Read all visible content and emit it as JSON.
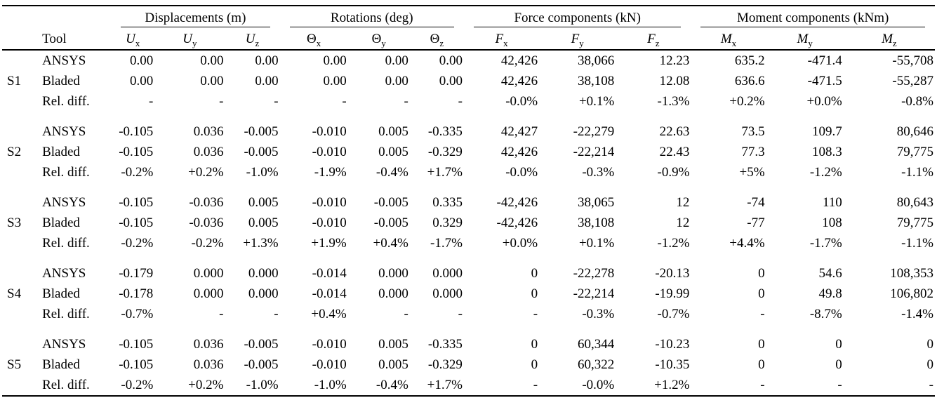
{
  "table": {
    "tool_header": "Tool",
    "groups": [
      {
        "label": "Displacements (m)"
      },
      {
        "label": "Rotations (deg)"
      },
      {
        "label": "Force components (kN)"
      },
      {
        "label": "Moment components (kNm)"
      }
    ],
    "columns": [
      {
        "base": "U",
        "sub": "x",
        "italic": true
      },
      {
        "base": "U",
        "sub": "y",
        "italic": true
      },
      {
        "base": "U",
        "sub": "z",
        "italic": true
      },
      {
        "base": "Θ",
        "sub": "x",
        "italic": false
      },
      {
        "base": "Θ",
        "sub": "y",
        "italic": false
      },
      {
        "base": "Θ",
        "sub": "z",
        "italic": false
      },
      {
        "base": "F",
        "sub": "x",
        "italic": true
      },
      {
        "base": "F",
        "sub": "y",
        "italic": true
      },
      {
        "base": "F",
        "sub": "z",
        "italic": true
      },
      {
        "base": "M",
        "sub": "x",
        "italic": true
      },
      {
        "base": "M",
        "sub": "y",
        "italic": true
      },
      {
        "base": "M",
        "sub": "z",
        "italic": true
      }
    ],
    "row_labels": [
      "ANSYS",
      "Bladed",
      "Rel. diff."
    ],
    "sections": [
      {
        "id": "S1",
        "rows": [
          {
            "tool": "ANSYS",
            "values": [
              "0.00",
              "0.00",
              "0.00",
              "0.00",
              "0.00",
              "0.00",
              "42,426",
              "38,066",
              "12.23",
              "635.2",
              "-471.4",
              "-55,708"
            ]
          },
          {
            "tool": "Bladed",
            "values": [
              "0.00",
              "0.00",
              "0.00",
              "0.00",
              "0.00",
              "0.00",
              "42,426",
              "38,108",
              "12.08",
              "636.6",
              "-471.5",
              "-55,287"
            ]
          },
          {
            "tool": "Rel. diff.",
            "values": [
              "-",
              "-",
              "-",
              "-",
              "-",
              "-",
              "-0.0%",
              "+0.1%",
              "-1.3%",
              "+0.2%",
              "+0.0%",
              "-0.8%"
            ]
          }
        ]
      },
      {
        "id": "S2",
        "rows": [
          {
            "tool": "ANSYS",
            "values": [
              "-0.105",
              "0.036",
              "-0.005",
              "-0.010",
              "0.005",
              "-0.335",
              "42,427",
              "-22,279",
              "22.63",
              "73.5",
              "109.7",
              "80,646"
            ]
          },
          {
            "tool": "Bladed",
            "values": [
              "-0.105",
              "0.036",
              "-0.005",
              "-0.010",
              "0.005",
              "-0.329",
              "42,426",
              "-22,214",
              "22.43",
              "77.3",
              "108.3",
              "79,775"
            ]
          },
          {
            "tool": "Rel. diff.",
            "values": [
              "-0.2%",
              "+0.2%",
              "-1.0%",
              "-1.9%",
              "-0.4%",
              "+1.7%",
              "-0.0%",
              "-0.3%",
              "-0.9%",
              "+5%",
              "-1.2%",
              "-1.1%"
            ]
          }
        ]
      },
      {
        "id": "S3",
        "rows": [
          {
            "tool": "ANSYS",
            "values": [
              "-0.105",
              "-0.036",
              "0.005",
              "-0.010",
              "-0.005",
              "0.335",
              "-42,426",
              "38,065",
              "12",
              "-74",
              "110",
              "80,643"
            ]
          },
          {
            "tool": "Bladed",
            "values": [
              "-0.105",
              "-0.036",
              "0.005",
              "-0.010",
              "-0.005",
              "0.329",
              "-42,426",
              "38,108",
              "12",
              "-77",
              "108",
              "79,775"
            ]
          },
          {
            "tool": "Rel. diff.",
            "values": [
              "-0.2%",
              "-0.2%",
              "+1.3%",
              "+1.9%",
              "+0.4%",
              "-1.7%",
              "+0.0%",
              "+0.1%",
              "-1.2%",
              "+4.4%",
              "-1.7%",
              "-1.1%"
            ]
          }
        ]
      },
      {
        "id": "S4",
        "rows": [
          {
            "tool": "ANSYS",
            "values": [
              "-0.179",
              "0.000",
              "0.000",
              "-0.014",
              "0.000",
              "0.000",
              "0",
              "-22,278",
              "-20.13",
              "0",
              "54.6",
              "108,353"
            ]
          },
          {
            "tool": "Bladed",
            "values": [
              "-0.178",
              "0.000",
              "0.000",
              "-0.014",
              "0.000",
              "0.000",
              "0",
              "-22,214",
              "-19.99",
              "0",
              "49.8",
              "106,802"
            ]
          },
          {
            "tool": "Rel. diff.",
            "values": [
              "-0.7%",
              "-",
              "-",
              "+0.4%",
              "-",
              "-",
              "-",
              "-0.3%",
              "-0.7%",
              "-",
              "-8.7%",
              "-1.4%"
            ]
          }
        ]
      },
      {
        "id": "S5",
        "rows": [
          {
            "tool": "ANSYS",
            "values": [
              "-0.105",
              "0.036",
              "-0.005",
              "-0.010",
              "0.005",
              "-0.335",
              "0",
              "60,344",
              "-10.23",
              "0",
              "0",
              "0"
            ]
          },
          {
            "tool": "Bladed",
            "values": [
              "-0.105",
              "0.036",
              "-0.005",
              "-0.010",
              "0.005",
              "-0.329",
              "0",
              "60,322",
              "-10.35",
              "0",
              "0",
              "0"
            ]
          },
          {
            "tool": "Rel. diff.",
            "values": [
              "-0.2%",
              "+0.2%",
              "-1.0%",
              "-1.0%",
              "-0.4%",
              "+1.7%",
              "-",
              "-0.0%",
              "+1.2%",
              "-",
              "-",
              "-"
            ]
          }
        ]
      }
    ]
  },
  "colors": {
    "text": "#000000",
    "background": "#ffffff",
    "rule": "#000000"
  }
}
